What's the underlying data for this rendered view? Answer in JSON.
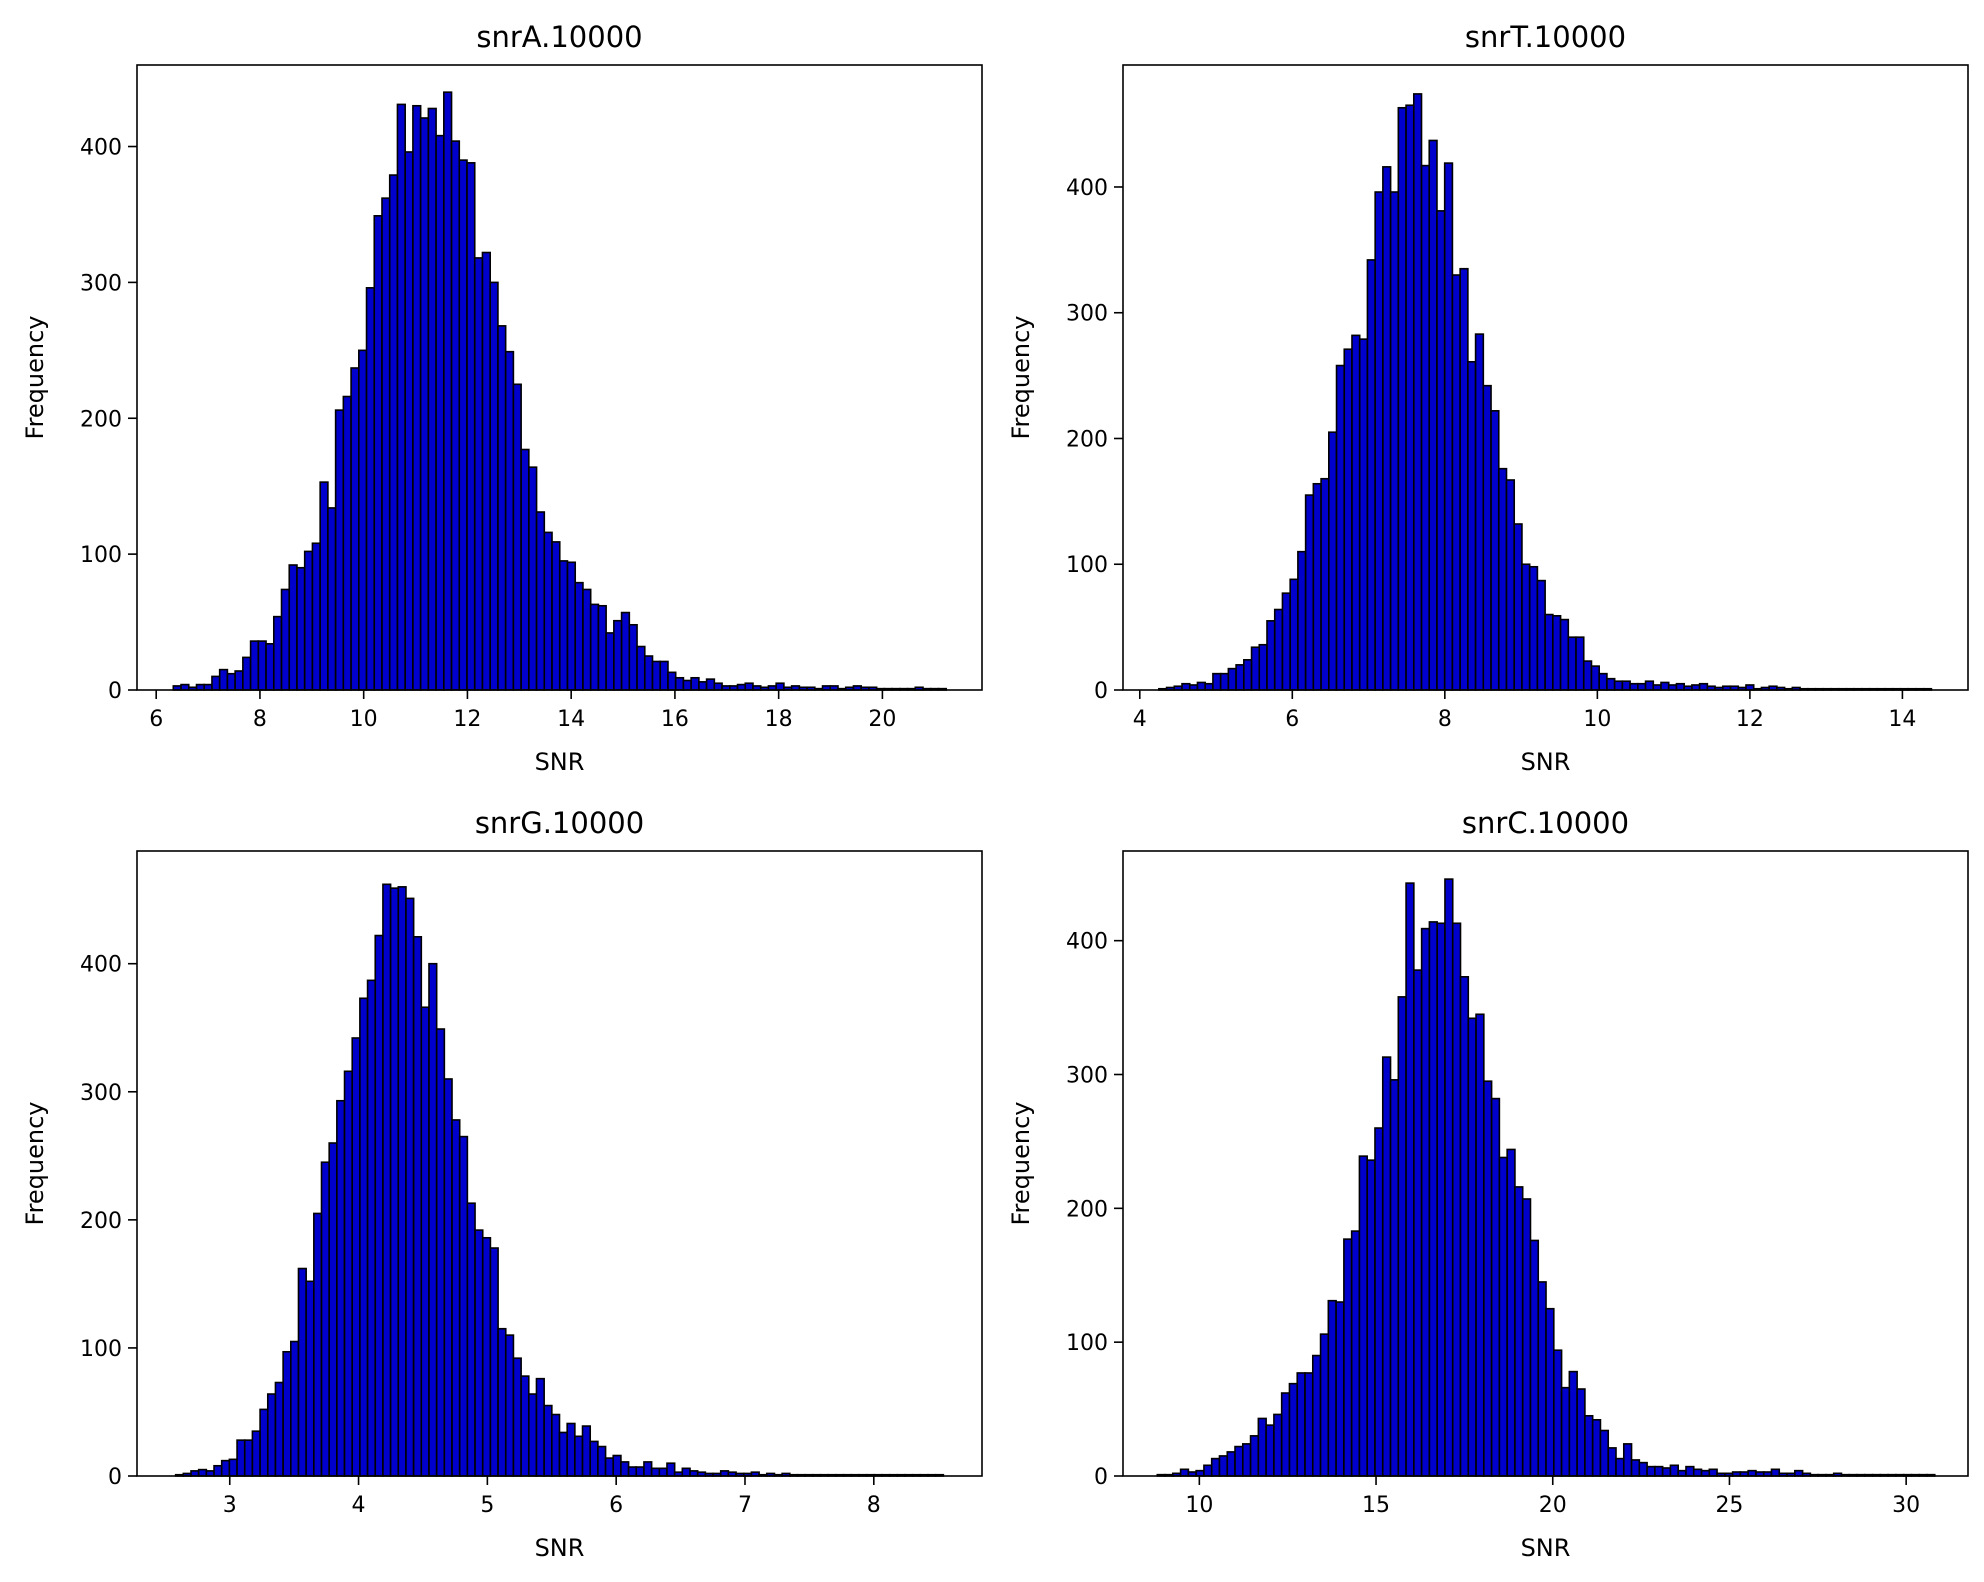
{
  "chart_data": [
    {
      "type": "bar",
      "title": "snrA.10000",
      "xlabel": "SNR",
      "ylabel": "Frequency",
      "xlim": [
        5.63,
        21.92
      ],
      "ylim": [
        0,
        460
      ],
      "xticks": [
        6,
        8,
        10,
        12,
        14,
        16,
        18,
        20
      ],
      "yticks": [
        0,
        100,
        200,
        300,
        400
      ],
      "bar_color": "#0000cc",
      "edge_color": "#000000",
      "grid": false,
      "bin_start": 6.33,
      "bin_width": 0.149,
      "values": [
        3,
        4,
        2,
        4,
        4,
        10,
        15,
        12,
        14,
        24,
        36,
        36,
        34,
        54,
        74,
        92,
        90,
        102,
        108,
        153,
        134,
        206,
        216,
        237,
        250,
        296,
        349,
        362,
        379,
        431,
        396,
        430,
        421,
        428,
        408,
        440,
        404,
        390,
        388,
        318,
        322,
        300,
        268,
        249,
        225,
        177,
        164,
        131,
        116,
        109,
        95,
        94,
        79,
        74,
        63,
        62,
        42,
        51,
        57,
        48,
        32,
        25,
        21,
        21,
        13,
        9,
        7,
        9,
        6,
        8,
        5,
        3,
        3,
        4,
        5,
        3,
        2,
        3,
        5,
        2,
        3,
        2,
        2,
        1,
        3,
        3,
        1,
        2,
        3,
        2,
        2,
        1,
        1,
        1,
        1,
        1,
        2,
        1,
        1,
        1
      ]
    },
    {
      "type": "bar",
      "title": "snrT.10000",
      "xlabel": "SNR",
      "ylabel": "Frequency",
      "xlim": [
        3.78,
        14.86
      ],
      "ylim": [
        0,
        497
      ],
      "xticks": [
        4,
        6,
        8,
        10,
        12,
        14
      ],
      "yticks": [
        0,
        100,
        200,
        300,
        400
      ],
      "bar_color": "#0000cc",
      "edge_color": "#000000",
      "grid": false,
      "bin_start": 4.25,
      "bin_width": 0.1013,
      "values": [
        1,
        2,
        3,
        5,
        4,
        6,
        5,
        13,
        13,
        17,
        20,
        24,
        34,
        36,
        55,
        64,
        77,
        88,
        110,
        155,
        164,
        168,
        205,
        258,
        271,
        282,
        279,
        342,
        396,
        416,
        396,
        463,
        465,
        474,
        417,
        437,
        381,
        419,
        330,
        335,
        261,
        283,
        242,
        222,
        176,
        167,
        132,
        100,
        98,
        87,
        60,
        59,
        56,
        42,
        42,
        23,
        19,
        13,
        9,
        7,
        7,
        5,
        5,
        7,
        4,
        6,
        4,
        5,
        3,
        4,
        5,
        3,
        2,
        3,
        3,
        2,
        4,
        1,
        2,
        3,
        2,
        1,
        2,
        1,
        1,
        1,
        1,
        1,
        1,
        1,
        1,
        1,
        1,
        1,
        1,
        1,
        1,
        1,
        1,
        1
      ]
    },
    {
      "type": "bar",
      "title": "snrG.10000",
      "xlabel": "SNR",
      "ylabel": "Frequency",
      "xlim": [
        2.28,
        8.84
      ],
      "ylim": [
        0,
        488
      ],
      "xticks": [
        3,
        4,
        5,
        6,
        7,
        8
      ],
      "yticks": [
        0,
        100,
        200,
        300,
        400
      ],
      "bar_color": "#0000cc",
      "edge_color": "#000000",
      "grid": false,
      "bin_start": 2.58,
      "bin_width": 0.0596,
      "values": [
        1,
        2,
        4,
        5,
        4,
        8,
        12,
        13,
        28,
        28,
        35,
        52,
        64,
        73,
        97,
        105,
        162,
        152,
        205,
        245,
        260,
        293,
        316,
        342,
        373,
        387,
        422,
        462,
        459,
        460,
        451,
        421,
        366,
        400,
        349,
        310,
        278,
        265,
        213,
        192,
        186,
        178,
        115,
        110,
        92,
        78,
        64,
        76,
        55,
        48,
        34,
        41,
        31,
        39,
        27,
        23,
        14,
        16,
        11,
        7,
        7,
        11,
        6,
        6,
        10,
        3,
        6,
        4,
        3,
        2,
        2,
        4,
        3,
        2,
        2,
        3,
        1,
        2,
        1,
        2,
        1,
        1,
        1,
        1,
        1,
        1,
        1,
        1,
        1,
        1,
        1,
        1,
        1,
        1,
        1,
        1,
        1,
        1,
        1,
        1
      ]
    },
    {
      "type": "bar",
      "title": "snrC.10000",
      "xlabel": "SNR",
      "ylabel": "Frequency",
      "xlim": [
        7.84,
        31.75
      ],
      "ylim": [
        0,
        467
      ],
      "xticks": [
        10,
        15,
        20,
        25,
        30
      ],
      "yticks": [
        0,
        100,
        200,
        300,
        400
      ],
      "bar_color": "#0000cc",
      "edge_color": "#000000",
      "grid": false,
      "bin_start": 8.81,
      "bin_width": 0.22,
      "values": [
        1,
        1,
        2,
        5,
        3,
        4,
        8,
        13,
        15,
        18,
        22,
        24,
        30,
        43,
        38,
        46,
        62,
        69,
        77,
        77,
        90,
        106,
        131,
        130,
        177,
        183,
        239,
        236,
        260,
        313,
        296,
        358,
        443,
        378,
        409,
        414,
        413,
        446,
        413,
        373,
        342,
        345,
        295,
        282,
        238,
        244,
        216,
        207,
        176,
        145,
        125,
        94,
        66,
        78,
        65,
        45,
        42,
        34,
        21,
        13,
        24,
        12,
        10,
        7,
        7,
        6,
        8,
        4,
        7,
        5,
        4,
        5,
        2,
        2,
        3,
        3,
        4,
        3,
        3,
        5,
        2,
        2,
        4,
        2,
        1,
        1,
        1,
        2,
        1,
        1,
        1,
        1,
        1,
        1,
        1,
        1,
        1,
        1,
        1,
        1
      ]
    }
  ]
}
